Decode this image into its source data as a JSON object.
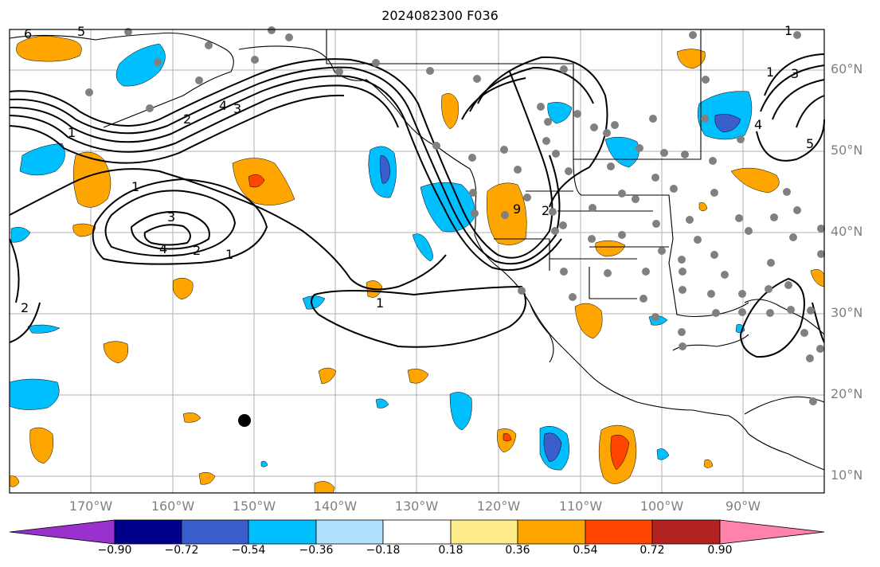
{
  "title": "2024082300 F036",
  "map": {
    "projection": "cylindrical",
    "lon_range": [
      "180°W",
      "80°W"
    ],
    "lat_range": [
      "8°N",
      "65°N"
    ],
    "grid": true,
    "lat_labels": [
      "60°N",
      "50°N",
      "40°N",
      "30°N",
      "20°N",
      "10°N"
    ],
    "lon_labels": [
      "170°W",
      "160°W",
      "150°W",
      "140°W",
      "130°W",
      "120°W",
      "110°W",
      "100°W",
      "90°W"
    ],
    "contour_labels": [
      "6",
      "5",
      "4",
      "3",
      "2",
      "1",
      "1",
      "3",
      "4",
      "2",
      "1",
      "2",
      "1",
      "9",
      "2",
      "1",
      "3",
      "4",
      "5",
      "1"
    ],
    "colors": {
      "purple": "#9932cc",
      "navy": "#00008b",
      "royal": "#3a5fcd",
      "sky": "#00bfff",
      "lightblue": "#b0e2ff",
      "yellow": "#ffec8b",
      "orange": "#ffa500",
      "redorange": "#ff4500",
      "firebrick": "#b22222",
      "pink": "#ff82ab",
      "station": "#808080",
      "contour": "#000000"
    }
  },
  "colorbar": {
    "ticks": [
      "−0.90",
      "−0.72",
      "−0.54",
      "−0.36",
      "−0.18",
      "0.18",
      "0.36",
      "0.54",
      "0.72",
      "0.90"
    ],
    "colors": [
      "#9932cc",
      "#00008b",
      "#3a5fcd",
      "#00bfff",
      "#b0e2ff",
      "#ffffff",
      "#ffec8b",
      "#ffa500",
      "#ff4500",
      "#b22222",
      "#ff82ab"
    ],
    "extend": "both"
  }
}
